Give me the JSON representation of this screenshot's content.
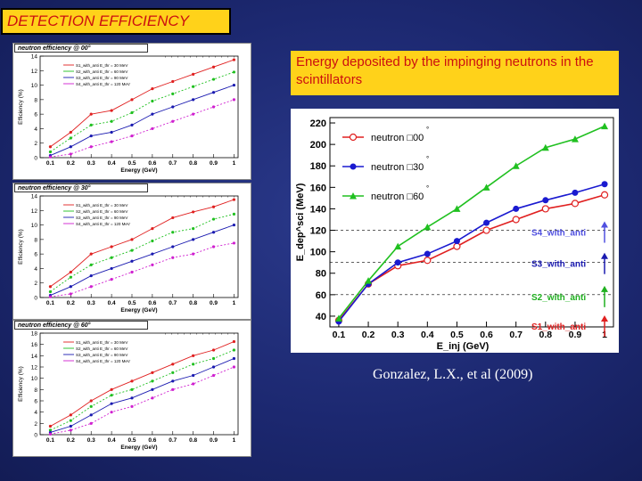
{
  "slide": {
    "title": "DETECTION  EFFICIENCY",
    "caption": "Energy deposited by the impinging neutrons in the scintillators",
    "credit": "Gonzalez, L.X., et al (2009)"
  },
  "colors": {
    "red": "#e02020",
    "green": "#20c020",
    "blue": "#1a1ab0",
    "magenta": "#d020d0",
    "yellow": "#ffd21a"
  },
  "chart_data": [
    {
      "type": "line",
      "title": "neutron efficiency @ 00°",
      "xlabel": "Energy (GeV)",
      "ylabel": "Efficiency (%)",
      "x": [
        0.1,
        0.2,
        0.3,
        0.4,
        0.5,
        0.6,
        0.7,
        0.8,
        0.9,
        1
      ],
      "xticks": [
        "0.1",
        "0.2",
        "0.3",
        "0.4",
        "0.5",
        "0.6",
        "0.7",
        "0.8",
        "0.9",
        "1"
      ],
      "ylim": [
        0,
        14
      ],
      "yticks": [
        0,
        2,
        4,
        6,
        8,
        10,
        12,
        14
      ],
      "legend": [
        "S1_with_anti E_thr = 30 MeV",
        "S2_with_anti E_thr = 60 MeV",
        "S3_with_anti E_thr = 90 MeV",
        "S4_with_anti E_thr = 120 MeV"
      ],
      "series": [
        {
          "values": [
            1.5,
            3.5,
            6.0,
            6.5,
            8.0,
            9.5,
            10.5,
            11.5,
            12.5,
            13.5
          ]
        },
        {
          "values": [
            0.8,
            2.7,
            4.5,
            5.0,
            6.2,
            7.8,
            8.8,
            9.8,
            10.8,
            11.8
          ]
        },
        {
          "values": [
            0.3,
            1.5,
            3.0,
            3.5,
            4.5,
            6.0,
            7.0,
            8.0,
            9.0,
            10.0
          ]
        },
        {
          "values": [
            0.1,
            0.5,
            1.5,
            2.2,
            3.0,
            4.0,
            5.0,
            6.0,
            7.0,
            8.0
          ]
        }
      ]
    },
    {
      "type": "line",
      "title": "neutron efficiency @ 30°",
      "xlabel": "Energy (GeV)",
      "ylabel": "Efficiency (%)",
      "x": [
        0.1,
        0.2,
        0.3,
        0.4,
        0.5,
        0.6,
        0.7,
        0.8,
        0.9,
        1
      ],
      "xticks": [
        "0.1",
        "0.2",
        "0.3",
        "0.4",
        "0.5",
        "0.6",
        "0.7",
        "0.8",
        "0.9",
        "1"
      ],
      "ylim": [
        0,
        14
      ],
      "yticks": [
        0,
        2,
        4,
        6,
        8,
        10,
        12,
        14
      ],
      "legend": [
        "S1_with_anti E_thr = 30 MeV",
        "S2_with_anti E_thr = 60 MeV",
        "S3_with_anti E_thr = 90 MeV",
        "S4_with_anti E_thr = 120 MeV"
      ],
      "series": [
        {
          "values": [
            1.5,
            3.5,
            6.0,
            7.0,
            8.0,
            9.5,
            11.0,
            11.8,
            12.5,
            13.5
          ]
        },
        {
          "values": [
            0.8,
            2.8,
            4.5,
            5.5,
            6.5,
            7.8,
            9.0,
            9.5,
            10.8,
            11.5
          ]
        },
        {
          "values": [
            0.3,
            1.5,
            3.0,
            4.0,
            5.0,
            6.0,
            7.0,
            8.0,
            9.0,
            10.0
          ]
        },
        {
          "values": [
            0.1,
            0.5,
            1.5,
            2.5,
            3.5,
            4.5,
            5.5,
            6.0,
            7.0,
            7.5
          ]
        }
      ]
    },
    {
      "type": "line",
      "title": "neutron efficiency @ 60°",
      "xlabel": "Energy (GeV)",
      "ylabel": "Efficiency (%)",
      "x": [
        0.1,
        0.2,
        0.3,
        0.4,
        0.5,
        0.6,
        0.7,
        0.8,
        0.9,
        1
      ],
      "xticks": [
        "0.1",
        "0.2",
        "0.3",
        "0.4",
        "0.5",
        "0.6",
        "0.7",
        "0.8",
        "0.9",
        "1"
      ],
      "ylim": [
        0,
        18
      ],
      "yticks": [
        0,
        2,
        4,
        6,
        8,
        10,
        12,
        14,
        16,
        18
      ],
      "legend": [
        "S1_with_anti E_thr = 30 MeV",
        "S2_with_anti E_thr = 60 MeV",
        "S3_with_anti E_thr = 90 MeV",
        "S4_with_anti E_thr = 120 MeV"
      ],
      "series": [
        {
          "values": [
            1.5,
            3.5,
            6.0,
            8.0,
            9.5,
            11.0,
            12.5,
            14.0,
            15.0,
            16.5
          ]
        },
        {
          "values": [
            0.8,
            2.5,
            5.0,
            7.0,
            8.0,
            9.5,
            11.0,
            12.5,
            13.5,
            15.0
          ]
        },
        {
          "values": [
            0.4,
            1.5,
            3.5,
            5.5,
            6.5,
            8.0,
            9.5,
            10.5,
            12.0,
            13.5
          ]
        },
        {
          "values": [
            0.1,
            0.8,
            2.0,
            4.0,
            5.0,
            6.5,
            8.0,
            9.0,
            10.5,
            12.0
          ]
        }
      ]
    },
    {
      "type": "line",
      "xlabel": "E_inj (GeV)",
      "ylabel": "E_dep^sci (MeV)",
      "x": [
        0.1,
        0.2,
        0.3,
        0.4,
        0.5,
        0.6,
        0.7,
        0.8,
        0.9,
        1
      ],
      "xticks": [
        "0.1",
        "0.2",
        "0.3",
        "0.4",
        "0.5",
        "0.6",
        "0.7",
        "0.8",
        "0.9",
        "1"
      ],
      "ylim": [
        30,
        225
      ],
      "yticks": [
        40,
        60,
        80,
        100,
        120,
        140,
        160,
        180,
        200,
        220
      ],
      "legend": [
        "neutron □00",
        "neutron □30",
        "neutron □60"
      ],
      "legend_degree": "°",
      "series": [
        {
          "values": [
            36,
            70,
            87,
            92,
            105,
            120,
            130,
            140,
            145,
            153
          ]
        },
        {
          "values": [
            35,
            70,
            90,
            98,
            110,
            127,
            140,
            148,
            155,
            163
          ]
        },
        {
          "values": [
            38,
            73,
            105,
            123,
            140,
            160,
            180,
            197,
            205,
            217
          ]
        }
      ],
      "thresholds": [
        {
          "label": "S4_with_anti",
          "value": 120
        },
        {
          "label": "S3_with_anti",
          "value": 90
        },
        {
          "label": "S2_with_anti",
          "value": 60
        },
        {
          "label": "S1_with_anti",
          "value": 30
        }
      ]
    }
  ]
}
